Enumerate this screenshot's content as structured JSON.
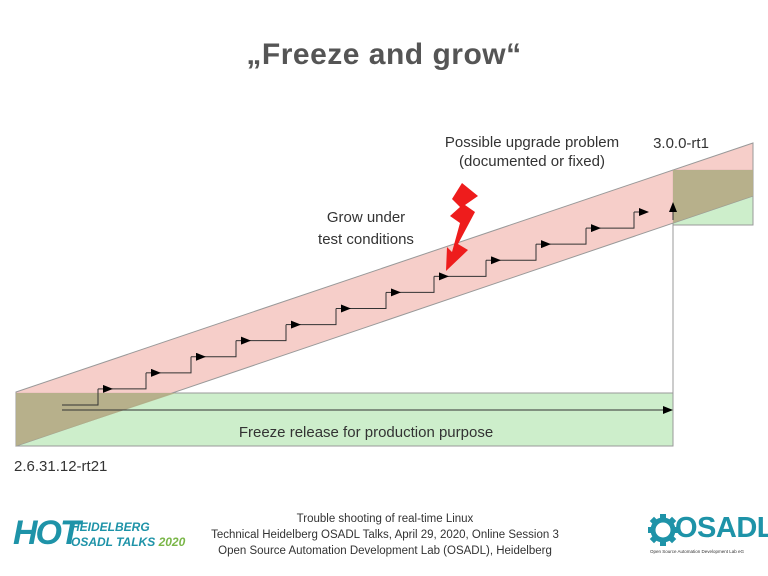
{
  "title": "„Freeze and grow“",
  "diagram": {
    "upgrade_note_line1": "Possible upgrade problem",
    "upgrade_note_line2": "(documented or fixed)",
    "grow_line1": "Grow under",
    "grow_line2": "test conditions",
    "freeze_label": "Freeze release for production purpose",
    "start_version": "2.6.31.12-rt21",
    "end_version": "3.0.0-rt1"
  },
  "footer": {
    "line1": "Trouble shooting of real-time Linux",
    "line2": "Technical Heidelberg OSADL Talks, April 29, 2020, Online Session 3",
    "line3": "Open Source Automation Development Lab (OSADL), Heidelberg"
  },
  "logos": {
    "hot_big": "HOT",
    "hot_line1": "HEIDELBERG",
    "hot_line2": "OSADL TALKS",
    "hot_year": "2020",
    "osadl_name": "OSADL",
    "osadl_sub": "Open Source Automation Development Lab eG"
  },
  "colors": {
    "band_grow": "#f5c6bf",
    "band_freeze": "#cdeecb",
    "overlap": "#b3ae88",
    "lightning": "#ee1c1c",
    "accent": "#1e93a8"
  }
}
